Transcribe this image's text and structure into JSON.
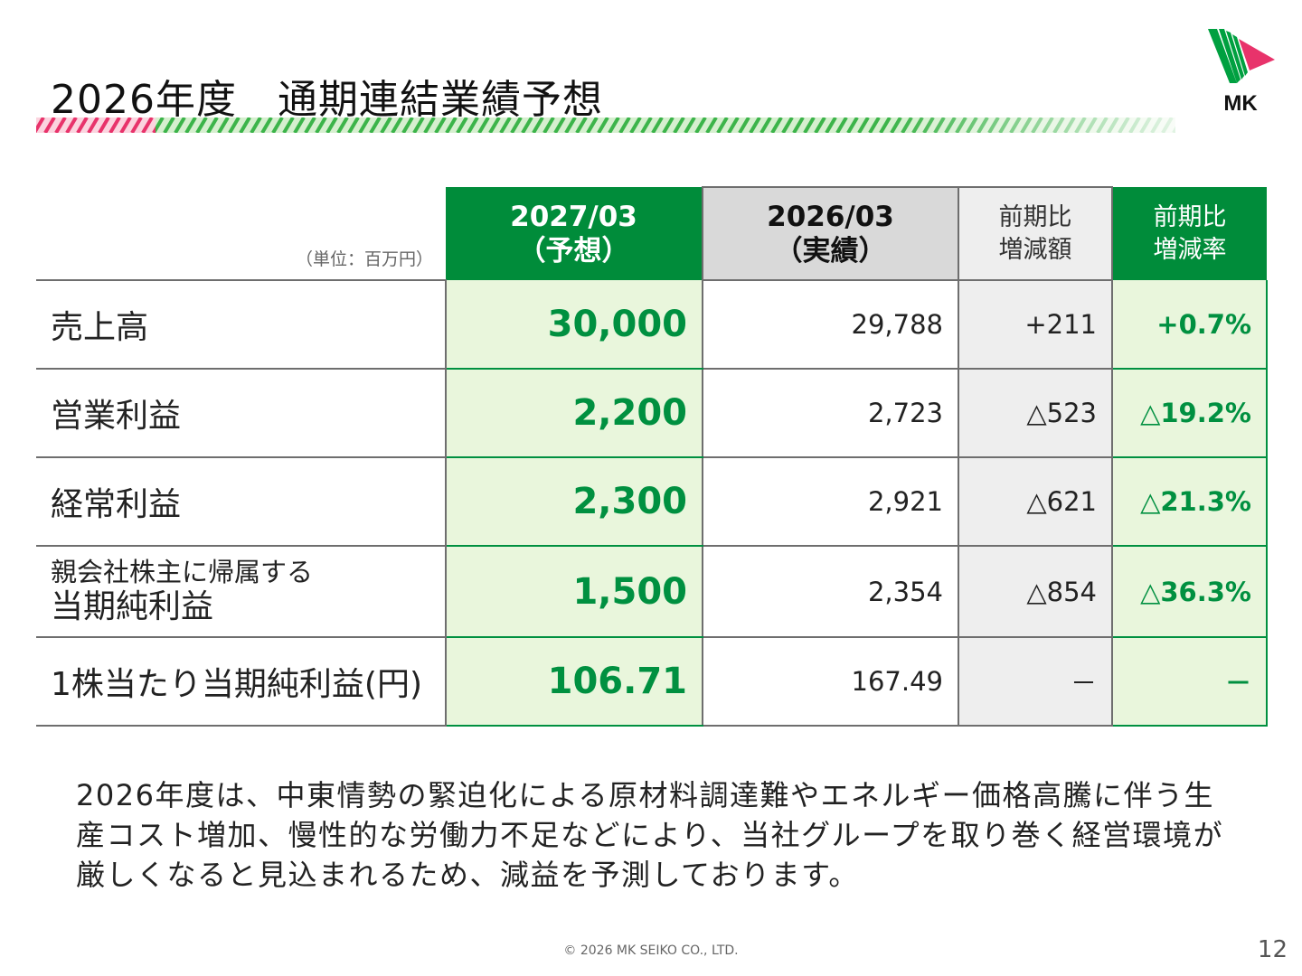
{
  "slide": {
    "title": "2026年度　通期連結業績予想",
    "logo_text": "MK",
    "colors": {
      "green": "#008c3a",
      "light_green": "#e9f6dc",
      "pink": "#e8336b",
      "gray": "#d9d9d9"
    }
  },
  "table": {
    "unit": "（単位：百万円）",
    "headers": {
      "plan_line1": "2027/03",
      "plan_line2": "（予想）",
      "actual_line1": "2026/03",
      "actual_line2": "（実績）",
      "diff_line1": "前期比",
      "diff_line2": "増減額",
      "rate_line1": "前期比",
      "rate_line2": "増減率"
    },
    "rows": [
      {
        "label": "売上高",
        "plan": "30,000",
        "actual": "29,788",
        "diff": "+211",
        "rate": "+0.7%"
      },
      {
        "label": "営業利益",
        "plan": "2,200",
        "actual": "2,723",
        "diff": "△523",
        "rate": "△19.2%"
      },
      {
        "label": "経常利益",
        "plan": "2,300",
        "actual": "2,921",
        "diff": "△621",
        "rate": "△21.3%"
      },
      {
        "label_small": "親会社株主に帰属する",
        "label": "当期純利益",
        "plan": "1,500",
        "actual": "2,354",
        "diff": "△854",
        "rate": "△36.3%"
      },
      {
        "label": "1株当たり当期純利益(円)",
        "plan": "106.71",
        "actual": "167.49",
        "diff": "－",
        "rate": "－"
      }
    ]
  },
  "description": "2026年度は、中東情勢の緊迫化による原材料調達難やエネルギー価格高騰に伴う生産コスト増加、慢性的な労働力不足などにより、当社グループを取り巻く経営環境が厳しくなると見込まれるため、減益を予測しております。",
  "footer": {
    "copyright": "© 2026 MK SEIKO CO., LTD.",
    "page_number": "12"
  }
}
